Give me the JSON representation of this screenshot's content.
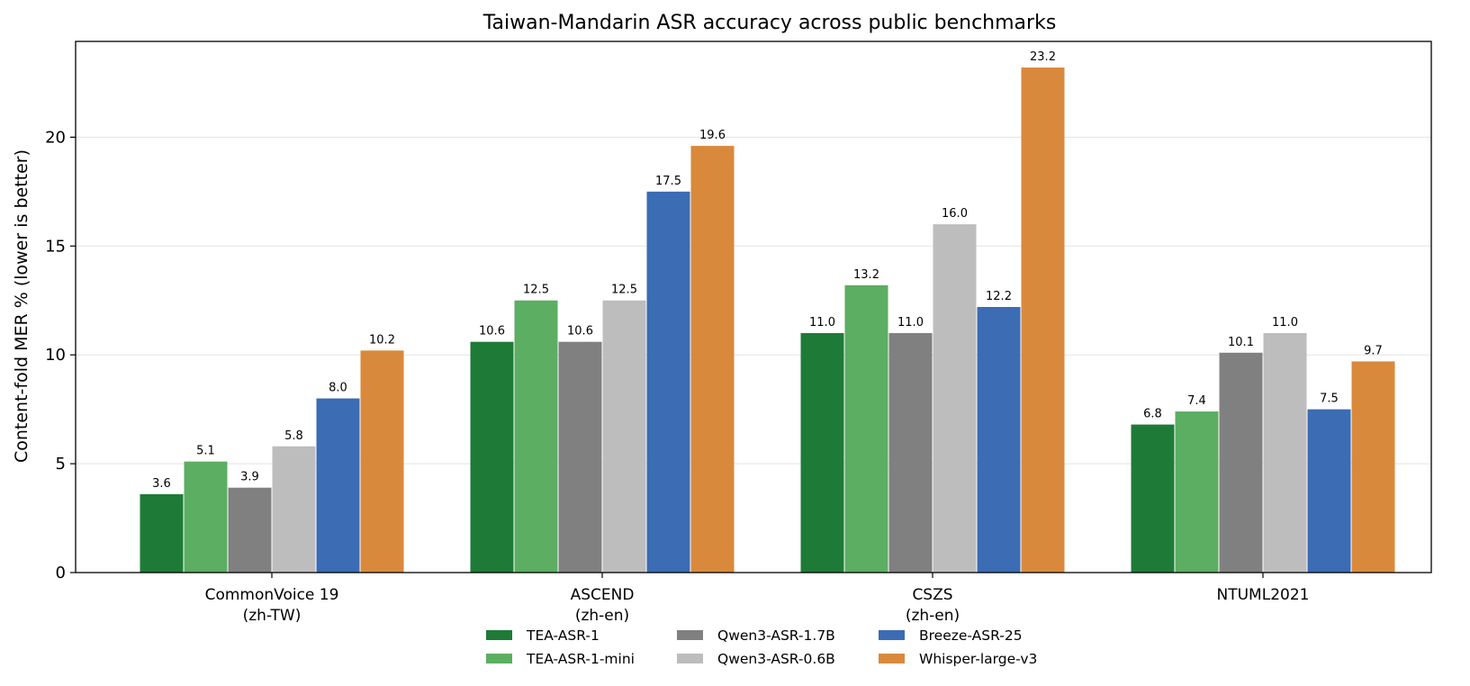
{
  "chart_data": {
    "type": "bar",
    "title": "Taiwan-Mandarin ASR accuracy across public benchmarks",
    "xlabel": "",
    "ylabel": "Content-fold MER %  (lower is better)",
    "ylim": [
      0,
      24.4
    ],
    "yticks": [
      0,
      5,
      10,
      15,
      20
    ],
    "grid": "horizontal",
    "legend_position": "bottom-center",
    "categories": [
      [
        "CommonVoice 19",
        "(zh-TW)"
      ],
      [
        "ASCEND",
        "(zh-en)"
      ],
      [
        "CSZS",
        "(zh-en)"
      ],
      [
        "NTUML2021"
      ]
    ],
    "series": [
      {
        "name": "TEA-ASR-1",
        "color": "#1e7b37",
        "values": [
          3.6,
          10.6,
          11.0,
          6.8
        ],
        "labels": [
          "3.6",
          "10.6",
          "11.0",
          "6.8"
        ]
      },
      {
        "name": "TEA-ASR-1-mini",
        "color": "#5bae62",
        "values": [
          5.1,
          12.5,
          13.2,
          7.4
        ],
        "labels": [
          "5.1",
          "12.5",
          "13.2",
          "7.4"
        ]
      },
      {
        "name": "Qwen3-ASR-1.7B",
        "color": "#808080",
        "values": [
          3.9,
          10.6,
          11.0,
          10.1
        ],
        "labels": [
          "3.9",
          "10.6",
          "11.0",
          "10.1"
        ]
      },
      {
        "name": "Qwen3-ASR-0.6B",
        "color": "#bdbdbd",
        "values": [
          5.8,
          12.5,
          16.0,
          11.0
        ],
        "labels": [
          "5.8",
          "12.5",
          "16.0",
          "11.0"
        ]
      },
      {
        "name": "Breeze-ASR-25",
        "color": "#3b6cb4",
        "values": [
          8.0,
          17.5,
          12.2,
          7.5
        ],
        "labels": [
          "8.0",
          "17.5",
          "12.2",
          "7.5"
        ]
      },
      {
        "name": "Whisper-large-v3",
        "color": "#d9893c",
        "values": [
          10.2,
          19.6,
          23.2,
          9.7
        ],
        "labels": [
          "10.2",
          "19.6",
          "23.2",
          "9.7"
        ]
      }
    ]
  }
}
